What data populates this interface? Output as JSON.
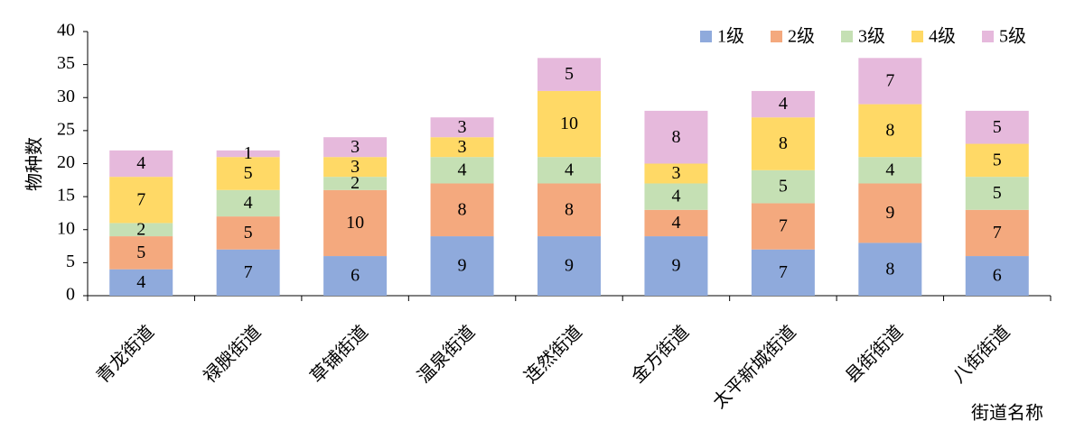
{
  "chart_data": {
    "type": "stacked_bar",
    "x_label": "街道名称",
    "y_label": "物种数",
    "categories": [
      "青龙街道",
      "禄腴街道",
      "草铺街道",
      "温泉街道",
      "连然街道",
      "金方街道",
      "太平新城街道",
      "县街街道",
      "八街街道"
    ],
    "series": [
      {
        "name": "1级",
        "color": "#8faadc",
        "values": [
          4,
          7,
          6,
          9,
          9,
          9,
          7,
          8,
          6
        ]
      },
      {
        "name": "2级",
        "color": "#f4a97e",
        "values": [
          5,
          5,
          10,
          8,
          8,
          4,
          7,
          9,
          7
        ]
      },
      {
        "name": "3级",
        "color": "#c5e0b4",
        "values": [
          2,
          4,
          2,
          4,
          4,
          4,
          5,
          4,
          5
        ]
      },
      {
        "name": "4级",
        "color": "#ffd966",
        "values": [
          7,
          5,
          3,
          3,
          10,
          3,
          8,
          8,
          5
        ]
      },
      {
        "name": "5级",
        "color": "#e6b9dc",
        "values": [
          4,
          1,
          3,
          3,
          5,
          8,
          4,
          7,
          5
        ]
      }
    ],
    "ylim": [
      0,
      40
    ],
    "yticks": [
      0,
      5,
      10,
      15,
      20,
      25,
      30,
      35,
      40
    ],
    "legend": "top-right",
    "grid": false
  }
}
